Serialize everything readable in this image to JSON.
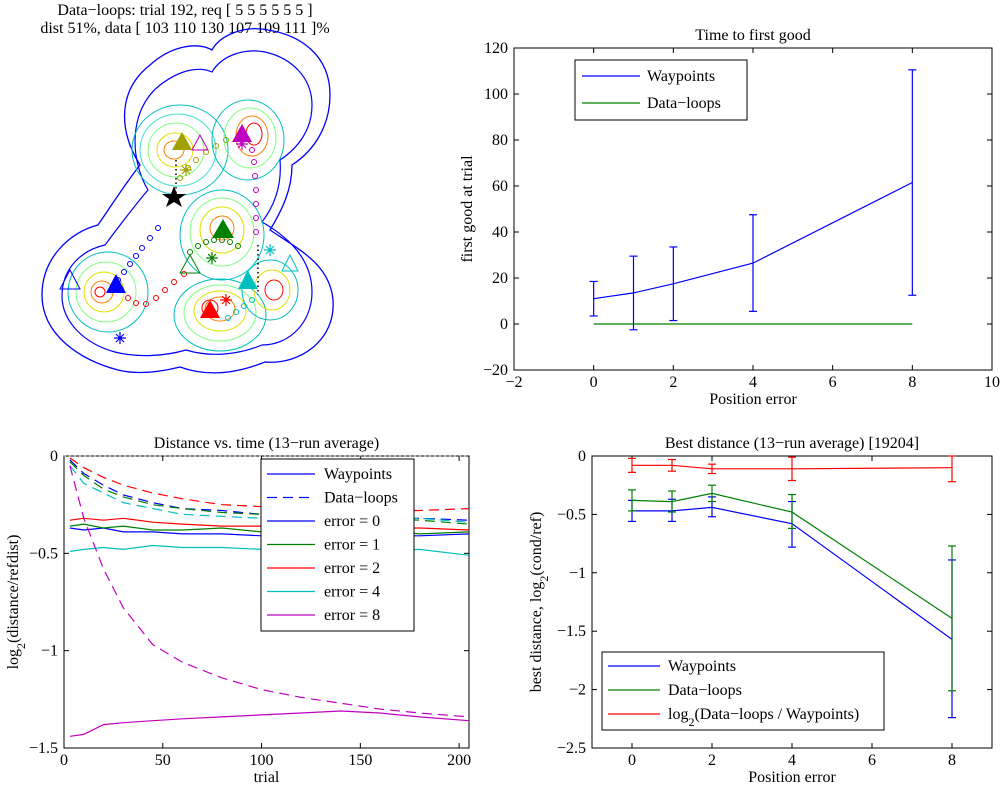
{
  "figure_header": {
    "line1": "Data−loops: trial 192, req [ 5 5 5 5 5 5 ]",
    "line2": "dist 51%, data [ 103 110 130 107 109 111 ]%"
  },
  "colors": {
    "blue": "#0000ff",
    "green": "#008000",
    "red": "#ff0000",
    "cyan": "#00bfbf",
    "magenta": "#bf00bf",
    "dotted": "#808080"
  },
  "chart_data": [
    {
      "id": "time_to_first_good",
      "type": "line",
      "title": "Time to first good",
      "xlabel": "Position error",
      "ylabel": "first good at trial",
      "xlim": [
        -2,
        10
      ],
      "ylim": [
        -20,
        120
      ],
      "xticks": [
        -2,
        0,
        2,
        4,
        6,
        8,
        10
      ],
      "yticks": [
        -20,
        0,
        20,
        40,
        60,
        80,
        100,
        120
      ],
      "legend_position": "top-left",
      "x": [
        0,
        1,
        2,
        4,
        8
      ],
      "series": [
        {
          "name": "Waypoints",
          "color": "#0000ff",
          "values": [
            11,
            13.5,
            17.5,
            26.5,
            61.5
          ],
          "err_low": [
            3.5,
            -2.5,
            1.5,
            5.5,
            12.5
          ],
          "err_high": [
            18.5,
            29.5,
            33.5,
            47.5,
            110.5
          ]
        },
        {
          "name": "Data−loops",
          "color": "#008000",
          "values": [
            0,
            0,
            0,
            0,
            0
          ]
        }
      ]
    },
    {
      "id": "distance_vs_time",
      "type": "line",
      "title": "Distance vs. time (13−run average)",
      "xlabel": "trial",
      "ylabel": "log2(distance/refdist)",
      "ylabel_main": "log",
      "ylabel_sub": "2",
      "ylabel_rest": "(distance/refdist)",
      "xlim": [
        0,
        205
      ],
      "ylim": [
        -1.5,
        0
      ],
      "xticks": [
        0,
        50,
        100,
        150,
        200
      ],
      "yticks": [
        -1.5,
        -1,
        -0.5,
        0
      ],
      "legend_position": "top-right",
      "legend": [
        {
          "label": "Waypoints",
          "color": "#0000ff",
          "dash": ""
        },
        {
          "label": "Data−loops",
          "color": "#0000ff",
          "dash": "10,6"
        },
        {
          "label": "error = 0",
          "color": "#0000ff",
          "dash": ""
        },
        {
          "label": "error = 1",
          "color": "#008000",
          "dash": ""
        },
        {
          "label": "error = 2",
          "color": "#ff0000",
          "dash": ""
        },
        {
          "label": "error = 4",
          "color": "#00bfbf",
          "dash": ""
        },
        {
          "label": "error = 8",
          "color": "#bf00bf",
          "dash": ""
        }
      ],
      "x": [
        3,
        10,
        20,
        30,
        45,
        60,
        80,
        100,
        120,
        140,
        160,
        180,
        205
      ],
      "series": [
        {
          "name": "waypoints error = 0",
          "color": "#0000ff",
          "dash": "",
          "values": [
            -0.37,
            -0.38,
            -0.37,
            -0.39,
            -0.39,
            -0.4,
            -0.4,
            -0.41,
            -0.4,
            -0.4,
            -0.41,
            -0.41,
            -0.4
          ]
        },
        {
          "name": "waypoints error = 1",
          "color": "#008000",
          "dash": "",
          "values": [
            -0.36,
            -0.35,
            -0.37,
            -0.36,
            -0.38,
            -0.38,
            -0.37,
            -0.39,
            -0.38,
            -0.39,
            -0.38,
            -0.4,
            -0.39
          ]
        },
        {
          "name": "waypoints error = 2",
          "color": "#ff0000",
          "dash": "",
          "values": [
            -0.33,
            -0.32,
            -0.33,
            -0.32,
            -0.34,
            -0.35,
            -0.36,
            -0.36,
            -0.36,
            -0.37,
            -0.37,
            -0.37,
            -0.38
          ]
        },
        {
          "name": "waypoints error = 4",
          "color": "#00bfbf",
          "dash": "",
          "values": [
            -0.49,
            -0.48,
            -0.47,
            -0.48,
            -0.46,
            -0.47,
            -0.47,
            -0.48,
            -0.48,
            -0.48,
            -0.49,
            -0.48,
            -0.51
          ]
        },
        {
          "name": "waypoints error = 8",
          "color": "#bf00bf",
          "dash": "",
          "values": [
            -1.44,
            -1.43,
            -1.38,
            -1.37,
            -1.36,
            -1.35,
            -1.34,
            -1.33,
            -1.32,
            -1.31,
            -1.32,
            -1.34,
            -1.36
          ]
        },
        {
          "name": "data-loops error = 0",
          "color": "#0000ff",
          "dash": "10,6",
          "values": [
            -0.02,
            -0.09,
            -0.15,
            -0.2,
            -0.24,
            -0.27,
            -0.28,
            -0.3,
            -0.31,
            -0.31,
            -0.32,
            -0.32,
            -0.33
          ]
        },
        {
          "name": "data-loops error = 1",
          "color": "#008000",
          "dash": "10,6",
          "values": [
            -0.03,
            -0.1,
            -0.17,
            -0.21,
            -0.25,
            -0.27,
            -0.29,
            -0.3,
            -0.31,
            -0.32,
            -0.32,
            -0.33,
            -0.35
          ]
        },
        {
          "name": "data-loops error = 2",
          "color": "#ff0000",
          "dash": "10,6",
          "values": [
            -0.01,
            -0.06,
            -0.11,
            -0.15,
            -0.19,
            -0.22,
            -0.25,
            -0.26,
            -0.27,
            -0.27,
            -0.28,
            -0.28,
            -0.27
          ]
        },
        {
          "name": "data-loops error = 4",
          "color": "#00bfbf",
          "dash": "10,6",
          "values": [
            -0.05,
            -0.14,
            -0.19,
            -0.24,
            -0.27,
            -0.3,
            -0.31,
            -0.32,
            -0.32,
            -0.32,
            -0.33,
            -0.32,
            -0.34
          ]
        },
        {
          "name": "data-loops error = 8",
          "color": "#bf00bf",
          "dash": "10,6",
          "values": [
            -0.05,
            -0.32,
            -0.58,
            -0.78,
            -0.97,
            -1.06,
            -1.14,
            -1.2,
            -1.24,
            -1.27,
            -1.3,
            -1.32,
            -1.34
          ]
        }
      ]
    },
    {
      "id": "best_distance",
      "type": "line",
      "title": "Best distance (13−run average) [19204]",
      "xlabel": "Position error",
      "ylabel": "best distance, log2(cond/ref)",
      "ylabel_main": "best distance, log",
      "ylabel_sub": "2",
      "ylabel_rest": "(cond/ref)",
      "xlim": [
        -1,
        9
      ],
      "ylim": [
        -2.5,
        0
      ],
      "xticks": [
        0,
        2,
        4,
        6,
        8
      ],
      "yticks": [
        -2.5,
        -2,
        -1.5,
        -1,
        -0.5,
        0
      ],
      "legend_position": "bottom-left",
      "x": [
        0,
        1,
        2,
        4,
        8
      ],
      "series": [
        {
          "name": "Waypoints",
          "color": "#0000ff",
          "values": [
            -0.47,
            -0.47,
            -0.44,
            -0.58,
            -1.57
          ],
          "err_low": [
            -0.56,
            -0.56,
            -0.52,
            -0.78,
            -2.24
          ],
          "err_high": [
            -0.38,
            -0.37,
            -0.35,
            -0.39,
            -0.89
          ]
        },
        {
          "name": "Data−loops",
          "color": "#008000",
          "values": [
            -0.38,
            -0.39,
            -0.32,
            -0.48,
            -1.39
          ],
          "err_low": [
            -0.47,
            -0.48,
            -0.39,
            -0.62,
            -2.01
          ],
          "err_high": [
            -0.29,
            -0.3,
            -0.25,
            -0.33,
            -0.77
          ]
        },
        {
          "name": "log2(Data−loops / Waypoints)",
          "name_main": "log",
          "name_sub": "2",
          "name_rest": "(Data−loops / Waypoints)",
          "color": "#ff0000",
          "values": [
            -0.08,
            -0.08,
            -0.11,
            -0.11,
            -0.1
          ],
          "err_low": [
            -0.14,
            -0.13,
            -0.15,
            -0.21,
            -0.22
          ],
          "err_high": [
            -0.02,
            -0.03,
            -0.07,
            -0.01,
            0
          ]
        }
      ]
    }
  ],
  "contour_map": {
    "agents": [
      {
        "name": "blue",
        "color": "#0000ff"
      },
      {
        "name": "olive",
        "color": "#a0a000"
      },
      {
        "name": "magenta",
        "color": "#bf00bf"
      },
      {
        "name": "green",
        "color": "#008000"
      },
      {
        "name": "cyan",
        "color": "#00bfbf"
      },
      {
        "name": "red",
        "color": "#ff0000"
      }
    ],
    "star_color": "#000000"
  }
}
